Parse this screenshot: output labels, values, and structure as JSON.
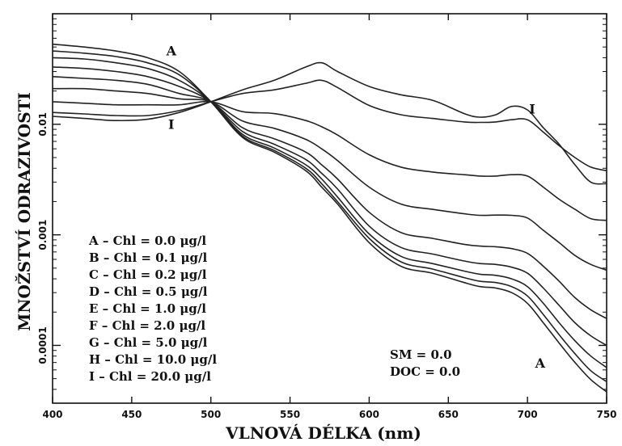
{
  "chart_data": {
    "type": "line",
    "xlabel": "VLNOVÁ DÉLKA (nm)",
    "ylabel": "MNOŽSTVÍ ODRAZIVOSTI",
    "xlim": [
      400,
      750
    ],
    "ylim": [
      3e-05,
      0.1
    ],
    "yscale": "log",
    "grid": false,
    "x_ticks": [
      "400",
      "450",
      "500",
      "550",
      "600",
      "650",
      "700",
      "750"
    ],
    "y_ticks": [
      {
        "label": "0.01",
        "value": 0.01
      },
      {
        "label": "0.001",
        "value": 0.001
      },
      {
        "label": "0.0001",
        "value": 0.0001
      }
    ],
    "x": [
      400,
      420,
      440,
      460,
      480,
      500,
      520,
      540,
      560,
      570,
      580,
      600,
      620,
      640,
      660,
      670,
      680,
      690,
      700,
      710,
      720,
      730,
      740,
      750
    ],
    "series": [
      {
        "values": [
          0.053,
          0.05,
          0.046,
          0.04,
          0.03,
          0.016,
          0.0076,
          0.0056,
          0.0038,
          0.0027,
          0.0019,
          0.00085,
          0.00052,
          0.00045,
          0.00037,
          0.00034,
          0.00033,
          0.0003,
          0.00024,
          0.00016,
          0.000105,
          7e-05,
          4.9e-05,
          3.8e-05
        ]
      },
      {
        "values": [
          0.046,
          0.044,
          0.041,
          0.036,
          0.028,
          0.016,
          0.0078,
          0.0058,
          0.004,
          0.0029,
          0.002,
          0.00093,
          0.00057,
          0.00049,
          0.00041,
          0.00038,
          0.00037,
          0.00034,
          0.00028,
          0.00019,
          0.000125,
          8.4e-05,
          5.9e-05,
          4.7e-05
        ]
      },
      {
        "values": [
          0.04,
          0.039,
          0.036,
          0.032,
          0.025,
          0.016,
          0.0081,
          0.0061,
          0.0043,
          0.0032,
          0.0022,
          0.00102,
          0.00064,
          0.00055,
          0.00047,
          0.00044,
          0.00043,
          0.0004,
          0.00034,
          0.00024,
          0.00016,
          0.00011,
          8e-05,
          6.3e-05
        ]
      },
      {
        "values": [
          0.033,
          0.032,
          0.03,
          0.027,
          0.022,
          0.016,
          0.0086,
          0.0066,
          0.0048,
          0.0036,
          0.0026,
          0.0012,
          0.00077,
          0.00067,
          0.00058,
          0.00055,
          0.00054,
          0.00051,
          0.00045,
          0.00033,
          0.00023,
          0.00016,
          0.000122,
          0.0001
        ]
      },
      {
        "values": [
          0.027,
          0.026,
          0.025,
          0.023,
          0.019,
          0.016,
          0.0093,
          0.0074,
          0.0056,
          0.0043,
          0.0032,
          0.0016,
          0.00105,
          0.00093,
          0.00082,
          0.00079,
          0.00078,
          0.00075,
          0.00068,
          0.00052,
          0.00038,
          0.00027,
          0.00021,
          0.000175
        ]
      },
      {
        "values": [
          0.021,
          0.021,
          0.02,
          0.019,
          0.017,
          0.016,
          0.0107,
          0.0092,
          0.0073,
          0.006,
          0.0047,
          0.0027,
          0.0019,
          0.0017,
          0.00155,
          0.0015,
          0.00151,
          0.0015,
          0.00142,
          0.0011,
          0.00085,
          0.00065,
          0.00054,
          0.00048
        ]
      },
      {
        "values": [
          0.016,
          0.0155,
          0.015,
          0.015,
          0.015,
          0.016,
          0.013,
          0.0125,
          0.0108,
          0.0095,
          0.008,
          0.0053,
          0.0041,
          0.0037,
          0.0035,
          0.0034,
          0.0034,
          0.0035,
          0.0034,
          0.0027,
          0.0021,
          0.0017,
          0.0014,
          0.00135
        ]
      },
      {
        "values": [
          0.0128,
          0.0124,
          0.012,
          0.012,
          0.0133,
          0.016,
          0.019,
          0.0205,
          0.0235,
          0.025,
          0.0215,
          0.0148,
          0.0122,
          0.0113,
          0.0105,
          0.0104,
          0.0105,
          0.011,
          0.011,
          0.0085,
          0.0064,
          0.005,
          0.0041,
          0.0038
        ]
      },
      {
        "values": [
          0.0118,
          0.0113,
          0.0108,
          0.0111,
          0.0128,
          0.016,
          0.0205,
          0.025,
          0.033,
          0.036,
          0.03,
          0.022,
          0.0185,
          0.0165,
          0.0125,
          0.0116,
          0.0122,
          0.0145,
          0.0135,
          0.0093,
          0.0066,
          0.0043,
          0.003,
          0.0029
        ]
      }
    ],
    "curve_labels": [
      {
        "text": "A",
        "x": 475,
        "y": 0.042
      },
      {
        "text": "I",
        "x": 475,
        "y": 0.0091
      },
      {
        "text": "I",
        "x": 703,
        "y": 0.0125
      },
      {
        "text": "A",
        "x": 708,
        "y": 6.3e-05
      }
    ],
    "legend": [
      "A  –  Chl  =  0.0  μg/l",
      "B  –  Chl  =  0.1  μg/l",
      "C  –  Chl  =  0.2  μg/l",
      "D  –  Chl  =  0.5  μg/l",
      "E  –  Chl  =  1.0  μg/l",
      "F  –  Chl  =  2.0  μg/l",
      "G  –  Chl  =  5.0  μg/l",
      "H  –  Chl  =  10.0  μg/l",
      "I  –  Chl  =  20.0  μg/l"
    ],
    "legend_position": "bottom-left",
    "annotations": [
      "SM = 0.0",
      "DOC = 0.0"
    ]
  }
}
